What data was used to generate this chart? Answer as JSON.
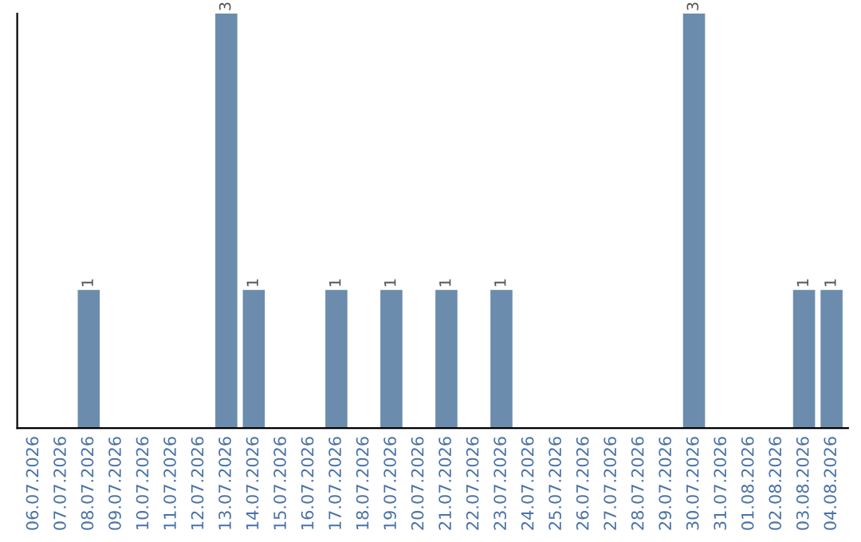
{
  "chart_data": {
    "type": "bar",
    "categories": [
      "06.07.2026",
      "07.07.2026",
      "08.07.2026",
      "09.07.2026",
      "10.07.2026",
      "11.07.2026",
      "12.07.2026",
      "13.07.2026",
      "14.07.2026",
      "15.07.2026",
      "16.07.2026",
      "17.07.2026",
      "18.07.2026",
      "19.07.2026",
      "20.07.2026",
      "21.07.2026",
      "22.07.2026",
      "23.07.2026",
      "24.07.2026",
      "25.07.2026",
      "26.07.2026",
      "27.07.2026",
      "28.07.2026",
      "29.07.2026",
      "30.07.2026",
      "31.07.2026",
      "01.08.2026",
      "02.08.2026",
      "03.08.2026",
      "04.08.2026"
    ],
    "values": [
      null,
      null,
      1,
      null,
      null,
      null,
      null,
      3,
      1,
      null,
      null,
      1,
      null,
      1,
      null,
      1,
      null,
      1,
      null,
      null,
      null,
      null,
      null,
      null,
      3,
      null,
      null,
      null,
      1,
      1
    ],
    "color": "#6b8cad",
    "data_labels": true,
    "tick_labels": "x",
    "grid": false,
    "legend": false
  }
}
